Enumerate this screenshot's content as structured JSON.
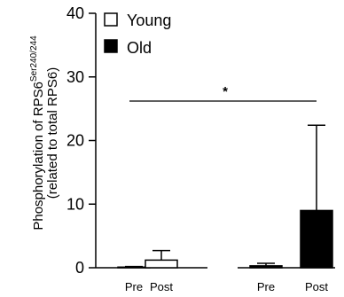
{
  "chart_data": {
    "type": "bar",
    "ylabel_line1": "Phosphorylation of RPS6",
    "ylabel_sup": "Ser240/244",
    "ylabel_line2": "(related to total RPS6)",
    "xlabel": "",
    "ylim": [
      0,
      40
    ],
    "yticks": [
      0,
      10,
      20,
      30,
      40
    ],
    "categories": [
      "Pre",
      "Post",
      "Pre",
      "Post"
    ],
    "groups": [
      "Young",
      "Young",
      "Old",
      "Old"
    ],
    "values": [
      0.1,
      1.2,
      0.3,
      9.0
    ],
    "error_upper": [
      0.2,
      2.7,
      0.7,
      22.4
    ],
    "legend": [
      {
        "label": "Young",
        "fill": "#ffffff"
      },
      {
        "label": "Old",
        "fill": "#000000"
      }
    ],
    "legend_position": "top-left",
    "significance": {
      "label": "*",
      "from": 0,
      "to": 3,
      "y": 26.2
    },
    "grid": false
  }
}
